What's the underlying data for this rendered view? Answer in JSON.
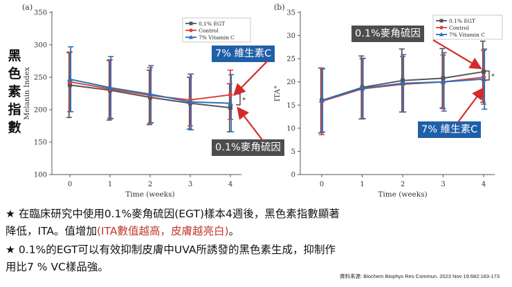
{
  "side_title": [
    "黑",
    "色",
    "素",
    "指",
    "數"
  ],
  "chart_data": [
    {
      "type": "line",
      "panel_label": "(a)",
      "x": [
        0,
        1,
        2,
        3,
        4
      ],
      "xlabel": "Time (weeks)",
      "ylabel": "Melanin Index",
      "ylim": [
        100,
        350
      ],
      "yticks": [
        100,
        150,
        200,
        250,
        300,
        350
      ],
      "series": [
        {
          "name": "0.1% EGT",
          "color": "#555555",
          "marker": "square",
          "values": [
            238,
            230,
            219,
            210,
            203
          ],
          "err_hi": [
            50,
            46,
            42,
            40,
            37
          ],
          "err_lo": [
            50,
            46,
            42,
            40,
            37
          ]
        },
        {
          "name": "Control",
          "color": "#d9433b",
          "marker": "circle",
          "values": [
            243,
            232,
            222,
            215,
            223
          ],
          "err_hi": [
            46,
            45,
            43,
            40,
            38
          ],
          "err_lo": [
            46,
            45,
            43,
            40,
            38
          ]
        },
        {
          "name": "7% Vitamin C",
          "color": "#2c6fbf",
          "marker": "triangle",
          "values": [
            247,
            234,
            224,
            212,
            210
          ],
          "err_hi": [
            50,
            48,
            44,
            43,
            44
          ],
          "err_lo": [
            50,
            48,
            44,
            43,
            44
          ]
        }
      ],
      "significance": "*"
    },
    {
      "type": "line",
      "panel_label": "(b)",
      "x": [
        0,
        1,
        2,
        3,
        4
      ],
      "xlabel": "Time (weeks)",
      "ylabel": "ITA°",
      "ylim": [
        0,
        35
      ],
      "yticks": [
        0,
        5,
        10,
        15,
        20,
        25,
        30,
        35
      ],
      "series": [
        {
          "name": "0.1% EGT",
          "color": "#555555",
          "marker": "square",
          "values": [
            16,
            18.8,
            20.3,
            20.8,
            22.2
          ],
          "err_hi": [
            7,
            6.8,
            6.8,
            6.4,
            6.6
          ],
          "err_lo": [
            7,
            6.8,
            6.8,
            6.4,
            6.6
          ]
        },
        {
          "name": "Control",
          "color": "#d9433b",
          "marker": "circle",
          "values": [
            15.8,
            18.5,
            19.5,
            20,
            21
          ],
          "err_hi": [
            7.2,
            6.5,
            6,
            5.8,
            5.8
          ],
          "err_lo": [
            7.2,
            6.5,
            6,
            5.8,
            5.8
          ]
        },
        {
          "name": "7% Vitamin C",
          "color": "#2c6fbf",
          "marker": "triangle",
          "values": [
            16,
            18.6,
            19.7,
            20,
            20.6
          ],
          "err_hi": [
            6.8,
            6.5,
            6.2,
            6.3,
            6.5
          ],
          "err_lo": [
            6.8,
            6.5,
            6.2,
            6.3,
            6.5
          ]
        }
      ],
      "significance": "*"
    }
  ],
  "callouts": {
    "a_vitc": "7% 維生素C",
    "a_egt": "0.1%麥角硫因",
    "b_egt": "0.1%麥角硫因",
    "b_vitc": "7% 維生素C"
  },
  "notes": {
    "line1_prefix": "★ 在臨床研究中使用0.1%麥角硫因(EGT)樣本4週後，黑色素指數顯著",
    "line2_prefix": "降低，ITA。值增加",
    "line2_red": "(ITA數值越高，皮膚越亮白)",
    "line2_suffix": "。",
    "line3": "★ 0.1%的EGT可以有效抑制皮膚中UVA所誘發的黑色素生成，抑制作",
    "line4": "用比7 % VC樣品強。"
  },
  "source": "資料來源: Biochem Biophys Res Commun. 2023 Nov 19:682:163-173",
  "colors": {
    "callout_blue": "#1f5fa8",
    "callout_gray": "#4d4d4d",
    "arrow_red": "#d42a2a"
  }
}
